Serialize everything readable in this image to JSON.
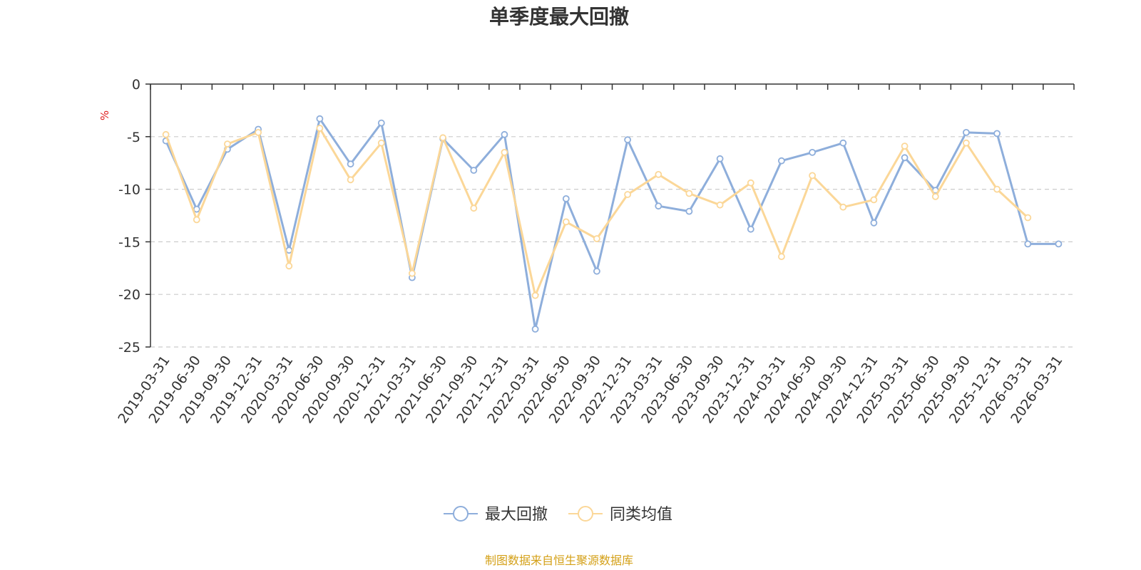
{
  "chart_data": {
    "type": "line",
    "title": "单季度最大回撤",
    "ylabel": "%",
    "xlabel": "",
    "ylim": [
      -25,
      0
    ],
    "yticks": [
      0,
      -5,
      -10,
      -15,
      -20,
      -25
    ],
    "grid": true,
    "legend_position": "bottom-center",
    "categories": [
      "2019-03-31",
      "2019-06-30",
      "2019-09-30",
      "2019-12-31",
      "2020-03-31",
      "2020-06-30",
      "2020-09-30",
      "2020-12-31",
      "2021-03-31",
      "2021-06-30",
      "2021-09-30",
      "2021-12-31",
      "2022-03-31",
      "2022-06-30",
      "2022-09-30",
      "2022-12-31",
      "2023-03-31",
      "2023-06-30",
      "2023-09-30",
      "2023-12-31",
      "2024-03-31",
      "2024-06-30",
      "2024-09-30",
      "2024-12-31",
      "2025-03-31",
      "2025-06-30",
      "2025-09-30",
      "2025-12-31",
      "2026-03-31",
      "2026-03-31"
    ],
    "series": [
      {
        "name": "最大回撤",
        "color": "#8eaedb",
        "values": [
          -5.4,
          -11.9,
          -6.2,
          -4.3,
          -15.8,
          -3.3,
          -7.6,
          -3.7,
          -18.4,
          -5.2,
          -8.2,
          -4.8,
          -23.3,
          -10.9,
          -17.8,
          -5.3,
          -11.6,
          -12.1,
          -7.1,
          -13.8,
          -7.3,
          -6.5,
          -5.6,
          -13.2,
          -7.0,
          -10.1,
          -4.6,
          -4.7,
          -15.2,
          -15.2
        ]
      },
      {
        "name": "同类均值",
        "color": "#fbd798",
        "values": [
          -4.8,
          -12.9,
          -5.7,
          -4.6,
          -17.3,
          -4.2,
          -9.1,
          -5.6,
          -18.0,
          -5.1,
          -11.8,
          -6.5,
          -20.1,
          -13.1,
          -14.7,
          -10.5,
          -8.6,
          -10.4,
          -11.5,
          -9.4,
          -16.4,
          -8.7,
          -11.7,
          -11.0,
          -5.9,
          -10.7,
          -5.6,
          -10.0,
          -12.7,
          null
        ]
      }
    ],
    "source_text": "制图数据来自恒生聚源数据库",
    "source_color": "#d4a017"
  }
}
